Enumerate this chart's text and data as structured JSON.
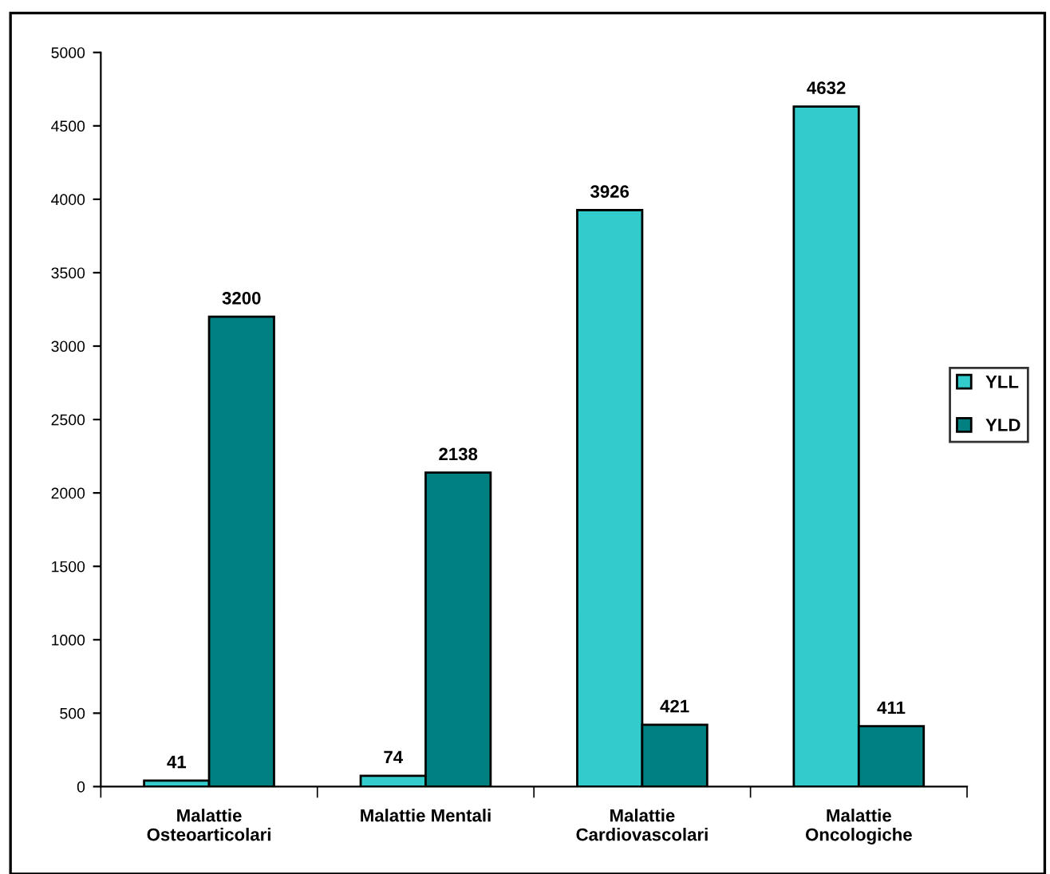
{
  "chart_data": {
    "type": "bar",
    "categories": [
      "Malattie\nOsteoarticolari",
      "Malattie Mentali",
      "Malattie\nCardiovascolari",
      "Malattie\nOncologiche"
    ],
    "series": [
      {
        "name": "YLL",
        "color": "#33cccc",
        "values": [
          41,
          74,
          3926,
          4632
        ]
      },
      {
        "name": "YLD",
        "color": "#008080",
        "values": [
          3200,
          2138,
          421,
          411
        ]
      }
    ],
    "ylim": [
      0,
      5000
    ],
    "yticks": [
      0,
      500,
      1000,
      1500,
      2000,
      2500,
      3000,
      3500,
      4000,
      4500,
      5000
    ],
    "data_labels": true,
    "grid": false,
    "legend": "right"
  }
}
